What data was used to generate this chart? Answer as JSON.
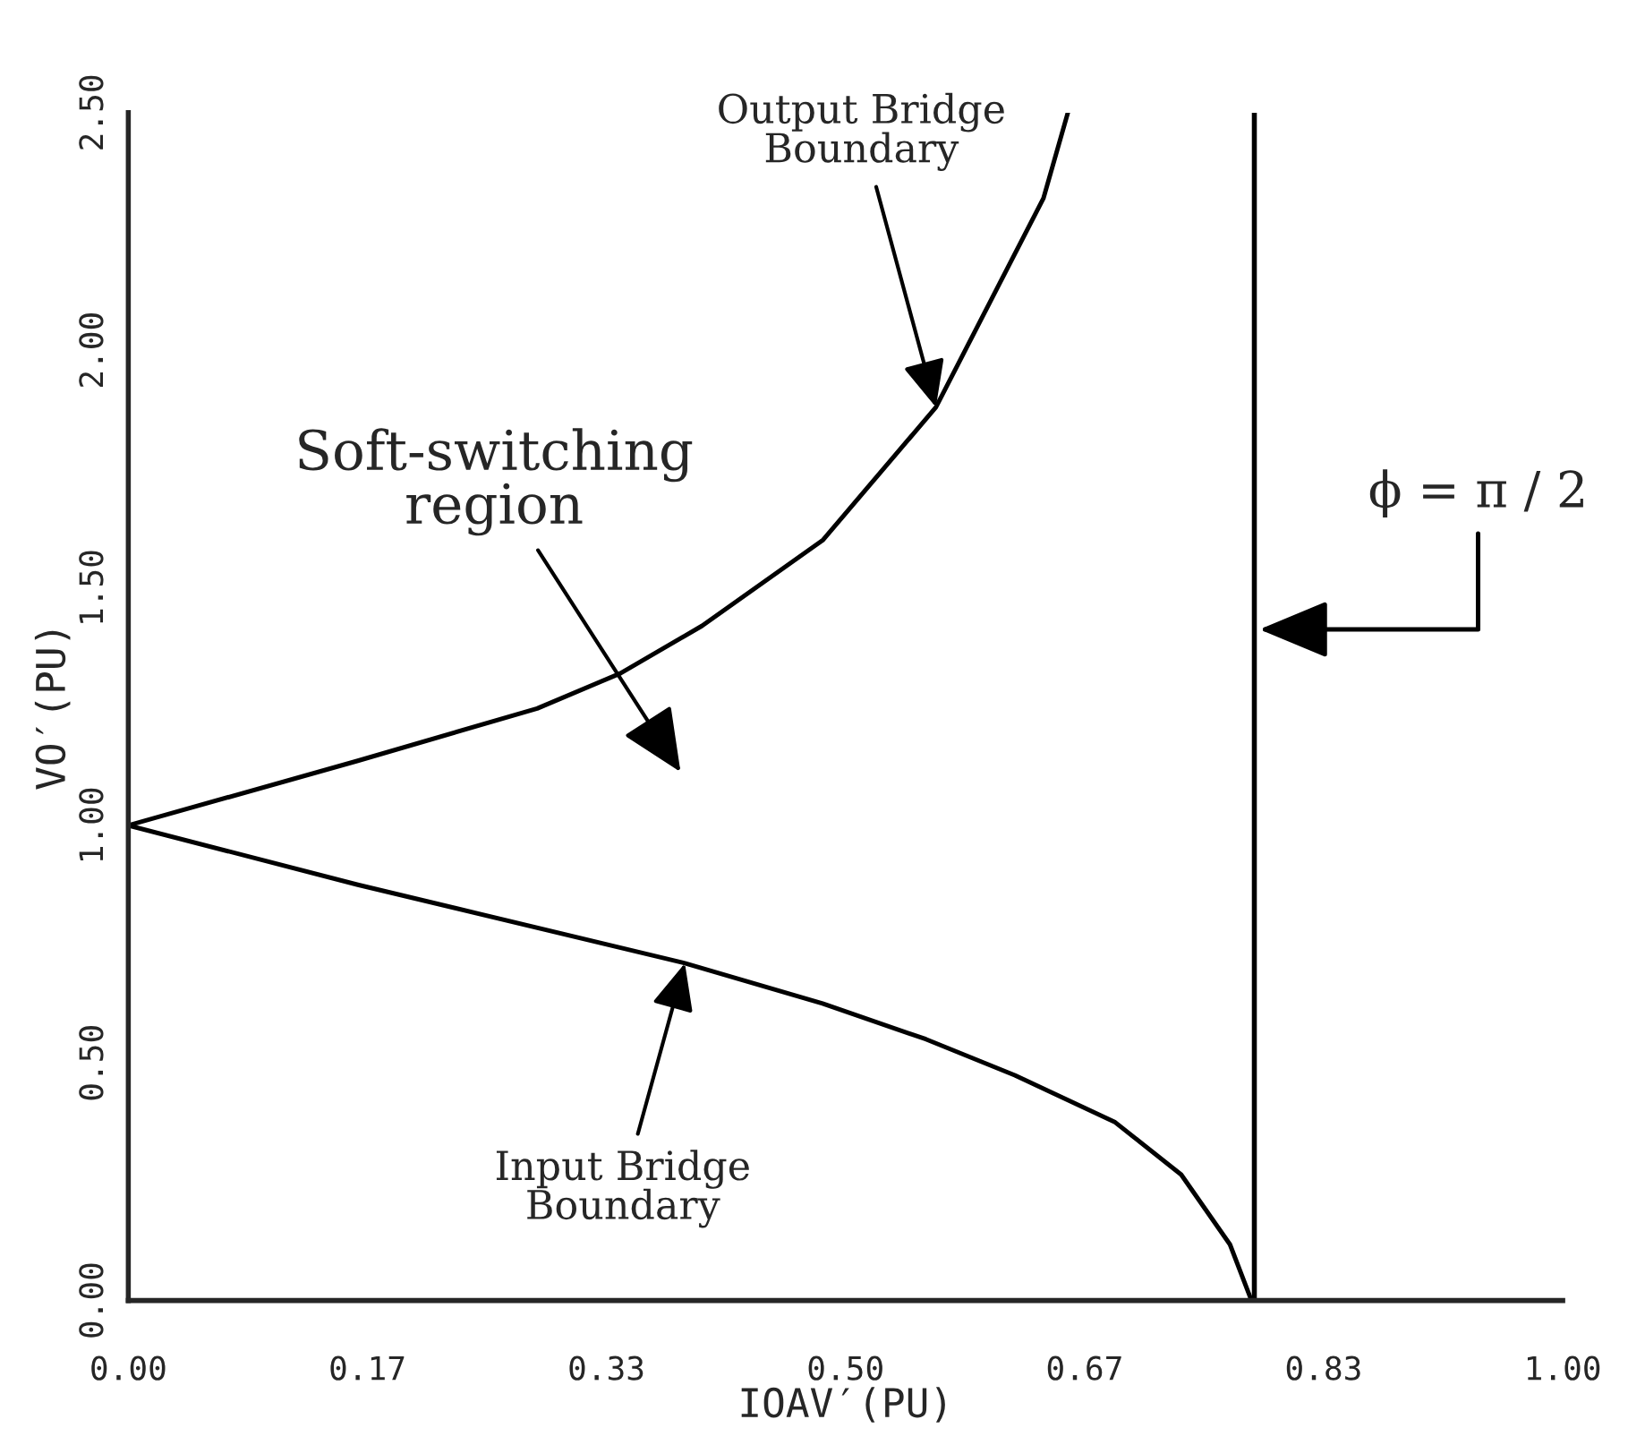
{
  "chart_data": {
    "type": "line",
    "xlabel": "IOAV′(PU)",
    "ylabel": "VO′(PU)",
    "xlim": [
      0,
      1.0
    ],
    "ylim": [
      0,
      2.5
    ],
    "xticks": [
      {
        "value": 0,
        "label": "0.00"
      },
      {
        "value": 0.1667,
        "label": "0.17"
      },
      {
        "value": 0.3333,
        "label": "0.33"
      },
      {
        "value": 0.5,
        "label": "0.50"
      },
      {
        "value": 0.6667,
        "label": "0.67"
      },
      {
        "value": 0.8333,
        "label": "0.83"
      },
      {
        "value": 1.0,
        "label": "1.00"
      }
    ],
    "yticks": [
      {
        "value": 0,
        "label": "0.00"
      },
      {
        "value": 0.5,
        "label": "0.50"
      },
      {
        "value": 1.0,
        "label": "1.00"
      },
      {
        "value": 1.5,
        "label": "1.50"
      },
      {
        "value": 2.0,
        "label": "2.00"
      },
      {
        "value": 2.5,
        "label": "2.50"
      }
    ],
    "grid": false,
    "legend": false,
    "marker": "none",
    "line_style": "solid",
    "series": [
      {
        "color": "#000000",
        "x": [
          0,
          0.16,
          0.285,
          0.343,
          0.4,
          0.484,
          0.563,
          0.609,
          0.638,
          0.655
        ],
        "values": [
          1.0,
          1.136,
          1.246,
          1.32,
          1.42,
          1.6,
          1.88,
          2.15,
          2.32,
          2.5
        ]
      },
      {
        "color": "#000000",
        "x": [
          0,
          0.16,
          0.388,
          0.484,
          0.556,
          0.618,
          0.688,
          0.734,
          0.768,
          0.783
        ],
        "values": [
          1.0,
          0.875,
          0.71,
          0.625,
          0.55,
          0.474,
          0.375,
          0.265,
          0.118,
          0.0
        ]
      }
    ],
    "ref_lines": [
      {
        "axis": "x",
        "value": 0.785,
        "label": "ϕ = π / 2",
        "color": "#000000",
        "line_style": "solid"
      }
    ],
    "annotations": [
      {
        "text": "Output Bridge\nBoundary",
        "x": 0.563,
        "y": 1.88
      },
      "Soft-switching\nregion",
      {
        "text": "Input Bridge\nBoundary",
        "x": 0.388,
        "y": 0.71
      }
    ]
  }
}
